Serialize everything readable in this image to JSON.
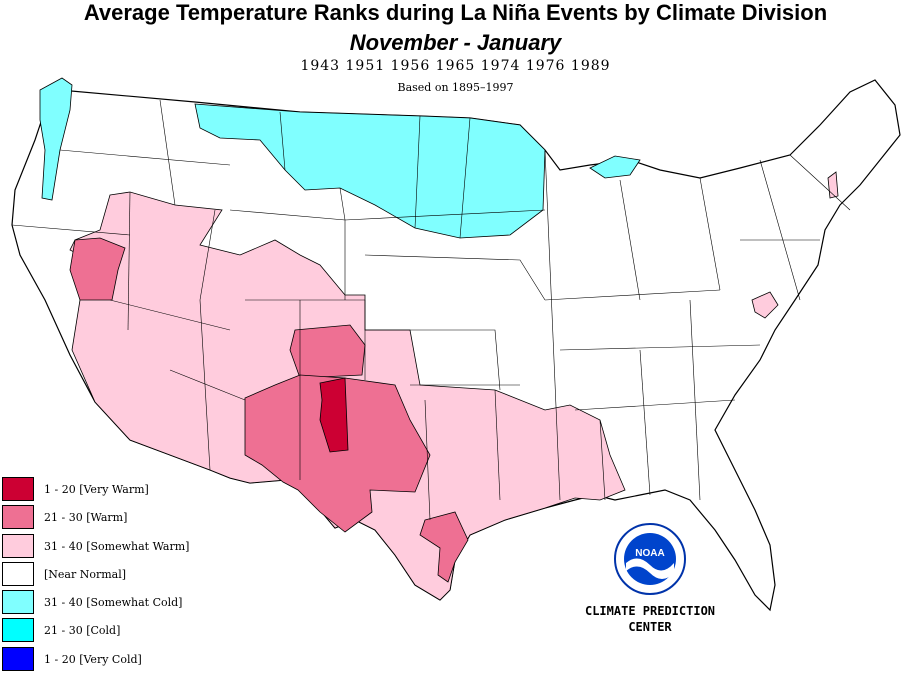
{
  "header": {
    "title": "Average Temperature Ranks during La  Niña Events by Climate Division",
    "subtitle": "November  -  January",
    "years": "1943 1951 1956 1965 1974 1976 1989",
    "basis": "Based on 1895–1997"
  },
  "legend": [
    {
      "label": "1 - 20 [Very Warm]",
      "color": "#cc0033"
    },
    {
      "label": "21 - 30 [Warm]",
      "color": "#ee7093"
    },
    {
      "label": "31 - 40 [Somewhat Warm]",
      "color": "#ffccdd"
    },
    {
      "label": " [Near Normal]",
      "color": "#ffffff"
    },
    {
      "label": "31 - 40 [Somewhat Cold]",
      "color": "#80ffff"
    },
    {
      "label": "21 - 30 [Cold]",
      "color": "#00ffff"
    },
    {
      "label": "1 - 20 [Very Cold]",
      "color": "#0000ff"
    }
  ],
  "logo": {
    "text": "NOAA",
    "icon": "noaa-logo"
  },
  "footer": {
    "line1": "CLIMATE PREDICTION",
    "line2": "CENTER"
  }
}
